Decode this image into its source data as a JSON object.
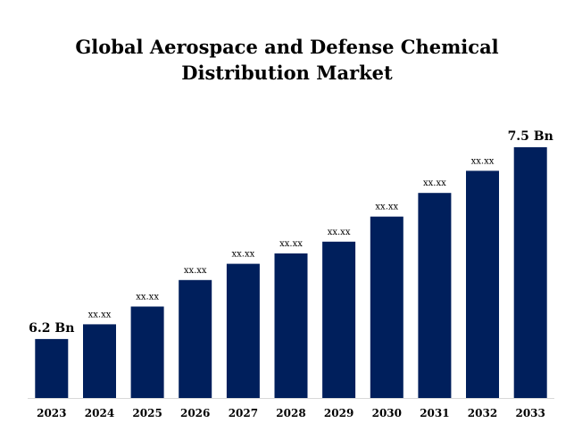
{
  "chart_data": {
    "type": "bar",
    "title_line1": "Global Aerospace and Defense Chemical",
    "title_line2": "Distribution Market",
    "categories": [
      "2023",
      "2024",
      "2025",
      "2026",
      "2027",
      "2028",
      "2029",
      "2030",
      "2031",
      "2032",
      "2033"
    ],
    "values": [
      6.2,
      6.3,
      6.42,
      6.6,
      6.71,
      6.78,
      6.86,
      7.03,
      7.19,
      7.34,
      7.5
    ],
    "labels": [
      "6.2 Bn",
      "xx.xx",
      "xx.xx",
      "xx.xx",
      "xx.xx",
      "xx.xx",
      "xx.xx",
      "xx.xx",
      "xx.xx",
      "xx.xx",
      "7.5 Bn"
    ],
    "label_emphasis": [
      true,
      false,
      false,
      false,
      false,
      false,
      false,
      false,
      false,
      false,
      true
    ],
    "ylim": [
      5.8,
      7.5
    ],
    "bar_color": "#001f5c",
    "axis_color": "#d9d9d9",
    "grid": false,
    "legend": "none"
  }
}
